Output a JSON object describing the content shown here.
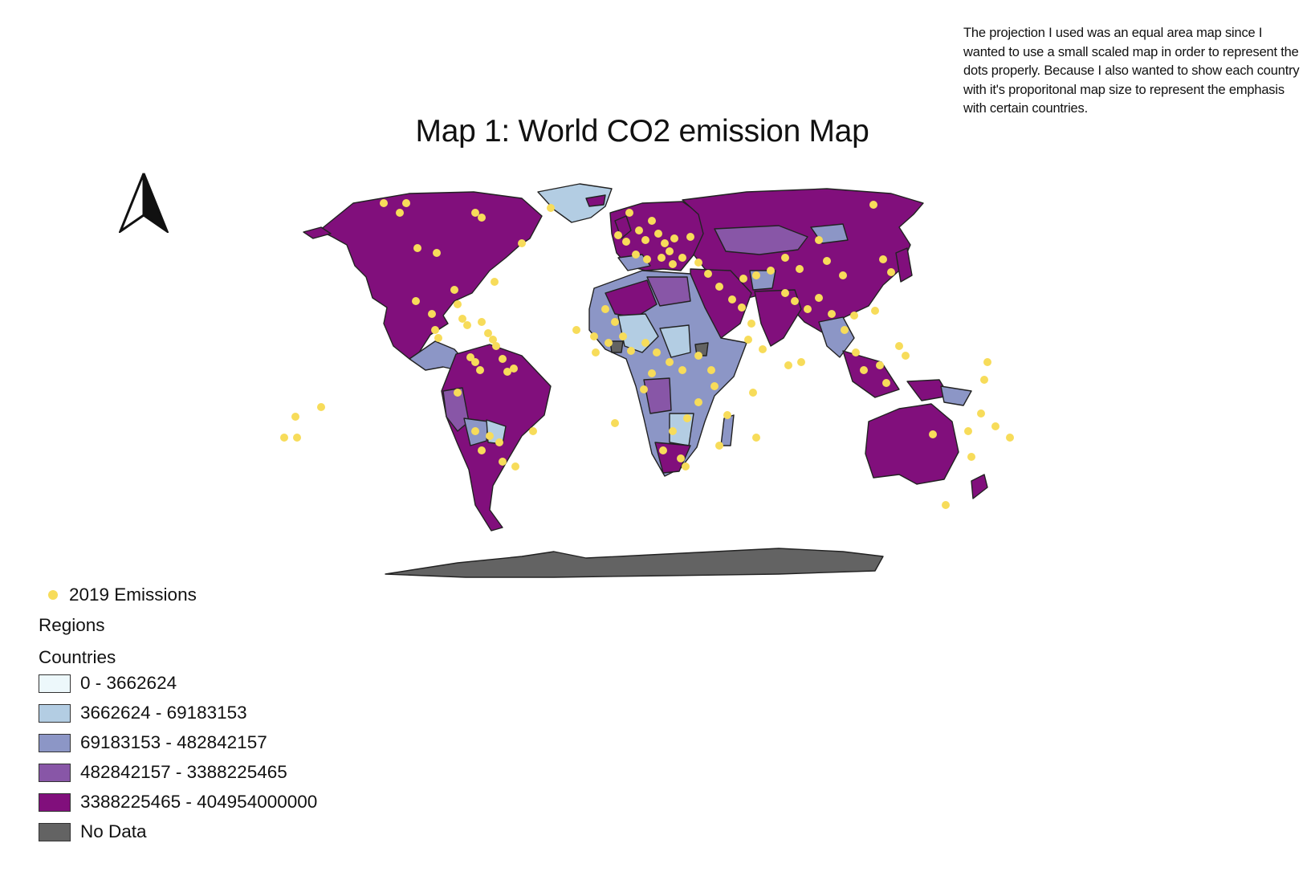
{
  "title": "Map 1: World CO2 emission Map",
  "note": "The projection I used was an equal area map since I wanted to use a small scaled map in order to represent the dots properly. Because I also wanted to show each country with it's proporitonal map size to represent the emphasis with certain countries.",
  "colors": {
    "class1": "#edf8fb",
    "class2": "#b3cde3",
    "class3": "#8c96c6",
    "class4": "#8856a7",
    "class5": "#810f7c",
    "no_data": "#636363",
    "dot": "#f7dc5a",
    "outline": "#222222"
  },
  "legend": {
    "points_label": "2019 Emissions",
    "regions_label": "Regions",
    "countries_label": "Countries",
    "classes": [
      {
        "label": "0 - 3662624",
        "color": "#edf8fb"
      },
      {
        "label": "3662624 - 69183153",
        "color": "#b3cde3"
      },
      {
        "label": "69183153 - 482842157",
        "color": "#8c96c6"
      },
      {
        "label": "482842157 - 3388225465",
        "color": "#8856a7"
      },
      {
        "label": "3388225465 - 404954000000",
        "color": "#810f7c"
      },
      {
        "label": "No Data",
        "color": "#636363"
      }
    ]
  },
  "icons": {
    "north_arrow": "north-arrow-icon"
  }
}
